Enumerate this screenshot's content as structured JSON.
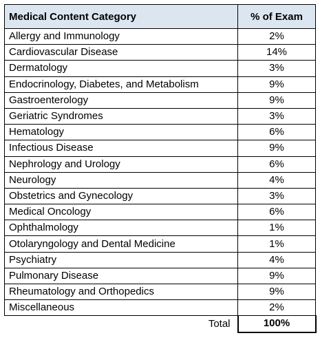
{
  "table": {
    "headers": [
      "Medical Content Category",
      "% of Exam"
    ],
    "rows": [
      {
        "category": "Allergy and Immunology",
        "percent": "2%"
      },
      {
        "category": "Cardiovascular Disease",
        "percent": "14%"
      },
      {
        "category": "Dermatology",
        "percent": "3%"
      },
      {
        "category": "Endocrinology, Diabetes, and Metabolism",
        "percent": "9%"
      },
      {
        "category": "Gastroenterology",
        "percent": "9%"
      },
      {
        "category": "Geriatric Syndromes",
        "percent": "3%"
      },
      {
        "category": "Hematology",
        "percent": "6%"
      },
      {
        "category": "Infectious Disease",
        "percent": "9%"
      },
      {
        "category": "Nephrology and Urology",
        "percent": "6%"
      },
      {
        "category": "Neurology",
        "percent": "4%"
      },
      {
        "category": "Obstetrics and Gynecology",
        "percent": "3%"
      },
      {
        "category": "Medical Oncology",
        "percent": "6%"
      },
      {
        "category": "Ophthalmology",
        "percent": "1%"
      },
      {
        "category": "Otolaryngology and Dental Medicine",
        "percent": "1%"
      },
      {
        "category": "Psychiatry",
        "percent": "4%"
      },
      {
        "category": "Pulmonary Disease",
        "percent": "9%"
      },
      {
        "category": "Rheumatology and Orthopedics",
        "percent": "9%"
      },
      {
        "category": "Miscellaneous",
        "percent": "2%"
      }
    ],
    "total_label": "Total",
    "total_value": "100%",
    "header_bg": "#dce6f1"
  }
}
